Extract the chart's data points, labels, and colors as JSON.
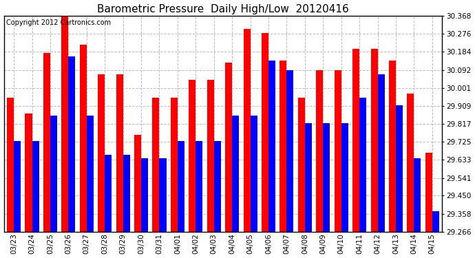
{
  "title": "Barometric Pressure  Daily High/Low  20120416",
  "copyright": "Copyright 2012 Cartronics.com",
  "dates": [
    "03/23",
    "03/24",
    "03/25",
    "03/26",
    "03/27",
    "03/28",
    "03/29",
    "03/30",
    "03/31",
    "04/01",
    "04/02",
    "04/03",
    "04/04",
    "04/05",
    "04/06",
    "04/07",
    "04/08",
    "04/09",
    "04/10",
    "04/11",
    "04/12",
    "04/13",
    "04/14",
    "04/15"
  ],
  "highs": [
    29.95,
    29.87,
    30.18,
    30.42,
    30.22,
    30.07,
    30.07,
    29.76,
    29.95,
    29.95,
    30.04,
    30.04,
    30.13,
    30.3,
    30.28,
    30.14,
    29.95,
    30.09,
    30.09,
    30.2,
    30.2,
    30.14,
    29.97,
    29.67
  ],
  "lows": [
    29.73,
    29.73,
    29.86,
    30.16,
    29.86,
    29.66,
    29.66,
    29.64,
    29.64,
    29.73,
    29.73,
    29.73,
    29.86,
    29.86,
    30.14,
    30.09,
    29.82,
    29.82,
    29.82,
    29.95,
    30.07,
    29.91,
    29.64,
    29.37
  ],
  "high_color": "#ff0000",
  "low_color": "#0000ff",
  "bg_color": "#ffffff",
  "grid_color": "#bbbbbb",
  "ymin": 29.266,
  "ymax": 30.368,
  "yticks": [
    29.266,
    29.358,
    29.45,
    29.541,
    29.633,
    29.725,
    29.817,
    29.909,
    30.001,
    30.092,
    30.184,
    30.276,
    30.368
  ],
  "bar_width": 0.38,
  "title_fontsize": 11,
  "copyright_fontsize": 7,
  "tick_fontsize": 7.5,
  "xlim_left": -0.55,
  "xlim_right": 23.55
}
